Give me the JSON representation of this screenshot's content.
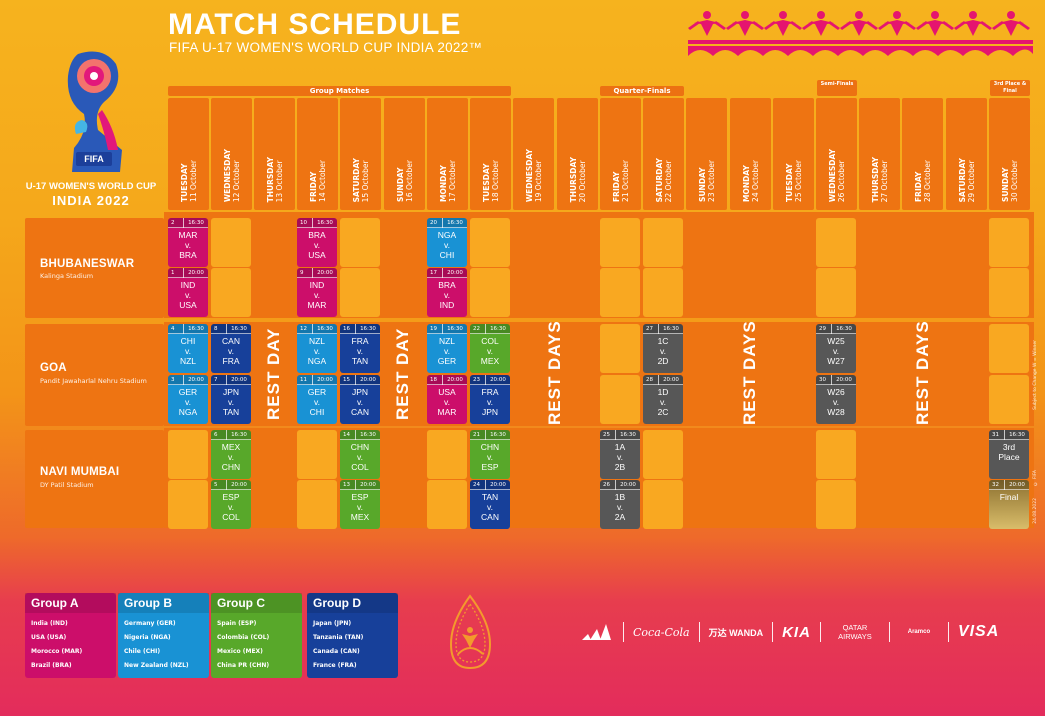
{
  "header": {
    "title": "MATCH SCHEDULE",
    "subtitle": "FIFA U-17 WOMEN'S WORLD CUP INDIA 2022™"
  },
  "logo": {
    "badge": "FIFA",
    "tm": "TM",
    "line1": "U-17 WOMEN'S WORLD CUP",
    "line2": "INDIA 2022"
  },
  "phases": {
    "group": "Group Matches",
    "quarter": "Quarter-Finals",
    "semi": "Semi-Finals",
    "final": "3rd Place & Final"
  },
  "days": [
    {
      "weekday": "TUESDAY",
      "date": "11 October"
    },
    {
      "weekday": "WEDNESDAY",
      "date": "12 October"
    },
    {
      "weekday": "THURSDAY",
      "date": "13 October"
    },
    {
      "weekday": "FRIDAY",
      "date": "14 October"
    },
    {
      "weekday": "SATURDAY",
      "date": "15 October"
    },
    {
      "weekday": "SUNDAY",
      "date": "16 October"
    },
    {
      "weekday": "MONDAY",
      "date": "17 October"
    },
    {
      "weekday": "TUESDAY",
      "date": "18 October"
    },
    {
      "weekday": "WEDNESDAY",
      "date": "19 October"
    },
    {
      "weekday": "THURSDAY",
      "date": "20 October"
    },
    {
      "weekday": "FRIDAY",
      "date": "21 October"
    },
    {
      "weekday": "SATURDAY",
      "date": "22 October"
    },
    {
      "weekday": "SUNDAY",
      "date": "23 October"
    },
    {
      "weekday": "MONDAY",
      "date": "24 October"
    },
    {
      "weekday": "TUESDAY",
      "date": "25 October"
    },
    {
      "weekday": "WEDNESDAY",
      "date": "26 October"
    },
    {
      "weekday": "THURSDAY",
      "date": "27 October"
    },
    {
      "weekday": "FRIDAY",
      "date": "28 October"
    },
    {
      "weekday": "SATURDAY",
      "date": "29 October"
    },
    {
      "weekday": "SUNDAY",
      "date": "30 October"
    }
  ],
  "venues": [
    {
      "name": "BHUBANESWAR",
      "stadium": "Kalinga Stadium"
    },
    {
      "name": "GOA",
      "stadium": "Pandit Jawaharlal Nehru Stadium"
    },
    {
      "name": "NAVI MUMBAI",
      "stadium": "DY Patil Stadium"
    }
  ],
  "rest": {
    "day": "REST DAY",
    "days": "REST DAYS"
  },
  "matches": [
    {
      "no": "2",
      "time": "16:30",
      "home": "MAR",
      "vs": "v.",
      "away": "BRA"
    },
    {
      "no": "1",
      "time": "20:00",
      "home": "IND",
      "vs": "v.",
      "away": "USA"
    },
    {
      "no": "10",
      "time": "16:30",
      "home": "BRA",
      "vs": "v.",
      "away": "USA"
    },
    {
      "no": "9",
      "time": "20:00",
      "home": "IND",
      "vs": "v.",
      "away": "MAR"
    },
    {
      "no": "20",
      "time": "16:30",
      "home": "NGA",
      "vs": "v.",
      "away": "CHI"
    },
    {
      "no": "17",
      "time": "20:00",
      "home": "BRA",
      "vs": "v.",
      "away": "IND"
    },
    {
      "no": "4",
      "time": "16:30",
      "home": "CHI",
      "vs": "v.",
      "away": "NZL"
    },
    {
      "no": "3",
      "time": "20:00",
      "home": "GER",
      "vs": "v.",
      "away": "NGA"
    },
    {
      "no": "8",
      "time": "16:30",
      "home": "CAN",
      "vs": "v.",
      "away": "FRA"
    },
    {
      "no": "7",
      "time": "20:00",
      "home": "JPN",
      "vs": "v.",
      "away": "TAN"
    },
    {
      "no": "12",
      "time": "16:30",
      "home": "NZL",
      "vs": "v.",
      "away": "NGA"
    },
    {
      "no": "11",
      "time": "20:00",
      "home": "GER",
      "vs": "v.",
      "away": "CHI"
    },
    {
      "no": "16",
      "time": "16:30",
      "home": "FRA",
      "vs": "v.",
      "away": "TAN"
    },
    {
      "no": "15",
      "time": "20:00",
      "home": "JPN",
      "vs": "v.",
      "away": "CAN"
    },
    {
      "no": "19",
      "time": "16:30",
      "home": "NZL",
      "vs": "v.",
      "away": "GER"
    },
    {
      "no": "18",
      "time": "20:00",
      "home": "USA",
      "vs": "v.",
      "away": "MAR"
    },
    {
      "no": "22",
      "time": "16:30",
      "home": "COL",
      "vs": "v.",
      "away": "MEX"
    },
    {
      "no": "23",
      "time": "20:00",
      "home": "FRA",
      "vs": "v.",
      "away": "JPN"
    },
    {
      "no": "27",
      "time": "16:30",
      "home": "1C",
      "vs": "v.",
      "away": "2D"
    },
    {
      "no": "28",
      "time": "20:00",
      "home": "1D",
      "vs": "v.",
      "away": "2C"
    },
    {
      "no": "29",
      "time": "16:30",
      "home": "W25",
      "vs": "v.",
      "away": "W27"
    },
    {
      "no": "30",
      "time": "20:00",
      "home": "W26",
      "vs": "v.",
      "away": "W28"
    },
    {
      "no": "6",
      "time": "16:30",
      "home": "MEX",
      "vs": "v.",
      "away": "CHN"
    },
    {
      "no": "5",
      "time": "20:00",
      "home": "ESP",
      "vs": "v.",
      "away": "COL"
    },
    {
      "no": "14",
      "time": "16:30",
      "home": "CHN",
      "vs": "v.",
      "away": "COL"
    },
    {
      "no": "13",
      "time": "20:00",
      "home": "ESP",
      "vs": "v.",
      "away": "MEX"
    },
    {
      "no": "21",
      "time": "16:30",
      "home": "CHN",
      "vs": "v.",
      "away": "ESP"
    },
    {
      "no": "24",
      "time": "20:00",
      "home": "TAN",
      "vs": "v.",
      "away": "CAN"
    },
    {
      "no": "25",
      "time": "16:30",
      "home": "1A",
      "vs": "v.",
      "away": "2B"
    },
    {
      "no": "26",
      "time": "20:00",
      "home": "1B",
      "vs": "v.",
      "away": "2A"
    },
    {
      "no": "31",
      "time": "16:30",
      "home": "3rd",
      "vs": "",
      "away": "Place"
    },
    {
      "no": "32",
      "time": "20:00",
      "home": "",
      "vs": "Final",
      "away": ""
    }
  ],
  "groups": [
    {
      "name": "Group A",
      "color": "#cc0e6a",
      "teams": [
        "India (IND)",
        "USA (USA)",
        "Morocco (MAR)",
        "Brazil (BRA)"
      ]
    },
    {
      "name": "Group B",
      "color": "#1992d4",
      "teams": [
        "Germany (GER)",
        "Nigeria (NGA)",
        "Chile (CHI)",
        "New Zealand (NZL)"
      ]
    },
    {
      "name": "Group C",
      "color": "#58a82a",
      "teams": [
        "Spain (ESP)",
        "Colombia (COL)",
        "Mexico (MEX)",
        "China PR (CHN)"
      ]
    },
    {
      "name": "Group D",
      "color": "#17409a",
      "teams": [
        "Japan (JPN)",
        "Tanzania (TAN)",
        "Canada (CAN)",
        "France (FRA)"
      ]
    }
  ],
  "sponsors": [
    "adidas",
    "Coca-Cola",
    "万达 WANDA",
    "KIA",
    "QATAR AIRWAYS",
    "Aramco",
    "VISA"
  ],
  "side_notes": [
    "Subject to Change  W = Winner",
    "© FIFA",
    "24.08.2022"
  ],
  "colors": {
    "groupA": "#cc0e6a",
    "groupB": "#1992d4",
    "groupC": "#58a82a",
    "groupD": "#17409a",
    "knockout": "#575757",
    "accent": "#ee7412"
  }
}
